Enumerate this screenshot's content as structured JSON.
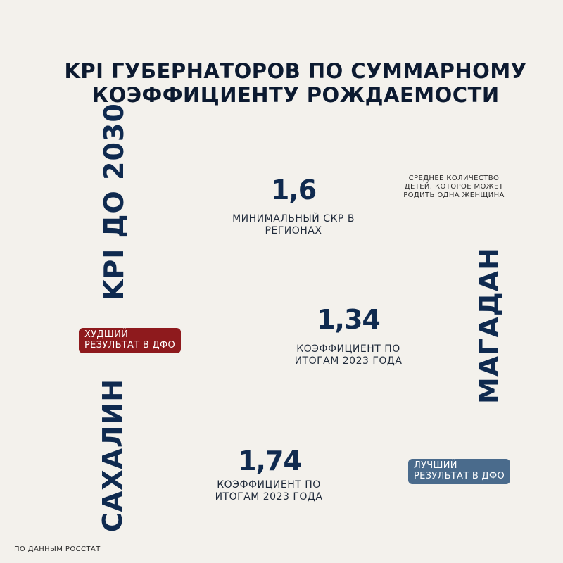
{
  "title": {
    "line1": "KPI ГУБЕРНАТОРОВ ПО СУММАРНОМУ",
    "line2": "КОЭФФИЦИЕНТУ РОЖДАЕМОСТИ"
  },
  "kpi_section": {
    "vertical_label": "KPI ДО 2030",
    "value": "1,6",
    "caption_line1": "МИНИМАЛЬНЫЙ СКР В",
    "caption_line2": "РЕГИОНАХ",
    "note_line1": "СРЕДНЕЕ КОЛИЧЕСТВО",
    "note_line2": "ДЕТЕЙ, КОТОРОЕ МОЖЕТ",
    "note_line3": "РОДИТЬ ОДНА ЖЕНЩИНА"
  },
  "magadan": {
    "region": "МАГАДАН",
    "value": "1,34",
    "caption_line1": "КОЭФФИЦИЕНТ ПО",
    "caption_line2": "ИТОГАМ 2023 ГОДА",
    "badge_line1": "ХУДШИЙ",
    "badge_line2": "РЕЗУЛЬТАТ В ДФО",
    "badge_color": "#8e1a1d"
  },
  "sakhalin": {
    "region": "САХАЛИН",
    "value": "1,74",
    "caption_line1": "КОЭФФИЦИЕНТ ПО",
    "caption_line2": "ИТОГАМ 2023 ГОДА",
    "badge_line1": "ЛУЧШИЙ",
    "badge_line2": "РЕЗУЛЬТАТ В ДФО",
    "badge_color": "#4a6b8c"
  },
  "source": "ПО ДАННЫМ РОССТАТ",
  "colors": {
    "background": "#f3f1ec",
    "navy": "#0f2a4f"
  }
}
